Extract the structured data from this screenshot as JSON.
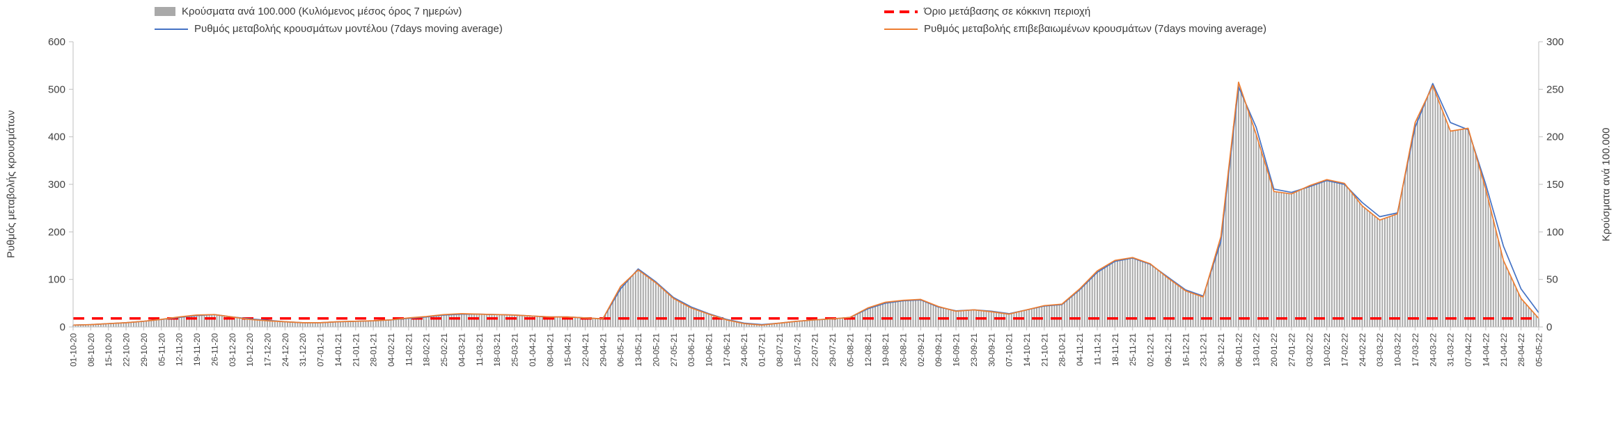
{
  "legend": {
    "bars_label": "Κρούσματα ανά 100.000 (Κυλιόμενος μέσος όρος 7 ημερών)",
    "threshold_label": "Όριο μετάβασης σε κόκκινη περιοχή",
    "model_label": "Ρυθμός μεταβολής κρουσμάτων μοντέλου (7days moving average)",
    "confirmed_label": "Ρυθμός μεταβολής επιβεβαιωμένων κρουσμάτων (7days moving average)"
  },
  "axes": {
    "left_title": "Ρυθμός μεταβολής κρουσμάτων",
    "right_title": "Κρούσματα ανά 100.000",
    "left_ticks": [
      0,
      100,
      200,
      300,
      400,
      500,
      600
    ],
    "right_ticks": [
      0,
      50,
      100,
      150,
      200,
      250,
      300
    ],
    "left_range": [
      0,
      600
    ],
    "right_range": [
      0,
      300
    ]
  },
  "colors": {
    "bars": "#a9a9a9",
    "model": "#4472c4",
    "confirmed": "#ed7d31",
    "threshold": "#ff0000",
    "axis_line": "#bfbfbf",
    "tick_text": "#404040"
  },
  "chart_data": {
    "type": "line+bar",
    "title": "",
    "grid": false,
    "legend_position": "top",
    "x_tick_rotation": 90,
    "x": [
      "01-10-20",
      "08-10-20",
      "15-10-20",
      "22-10-20",
      "29-10-20",
      "05-11-20",
      "12-11-20",
      "19-11-20",
      "26-11-20",
      "03-12-20",
      "10-12-20",
      "17-12-20",
      "24-12-20",
      "31-12-20",
      "07-01-21",
      "14-01-21",
      "21-01-21",
      "28-01-21",
      "04-02-21",
      "11-02-21",
      "18-02-21",
      "25-02-21",
      "04-03-21",
      "11-03-21",
      "18-03-21",
      "25-03-21",
      "01-04-21",
      "08-04-21",
      "15-04-21",
      "22-04-21",
      "29-04-21",
      "06-05-21",
      "13-05-21",
      "20-05-21",
      "27-05-21",
      "03-06-21",
      "10-06-21",
      "17-06-21",
      "24-06-21",
      "01-07-21",
      "08-07-21",
      "15-07-21",
      "22-07-21",
      "29-07-21",
      "05-08-21",
      "12-08-21",
      "19-08-21",
      "26-08-21",
      "02-09-21",
      "09-09-21",
      "16-09-21",
      "23-09-21",
      "30-09-21",
      "07-10-21",
      "14-10-21",
      "21-10-21",
      "28-10-21",
      "04-11-21",
      "11-11-21",
      "18-11-21",
      "25-11-21",
      "02-12-21",
      "09-12-21",
      "16-12-21",
      "23-12-21",
      "30-12-21",
      "06-01-22",
      "13-01-22",
      "20-01-22",
      "27-01-22",
      "03-02-22",
      "10-02-22",
      "17-02-22",
      "24-02-22",
      "03-03-22",
      "10-03-22",
      "17-03-22",
      "24-03-22",
      "31-03-22",
      "07-04-22",
      "14-04-22",
      "21-04-22",
      "28-04-22",
      "05-05-22"
    ],
    "series": [
      {
        "name": "Κρούσματα ανά 100.000 (Κυλιόμενος μέσος όρος 7 ημερών)",
        "type": "bar",
        "axis": "right",
        "values": [
          2,
          2.5,
          3.5,
          4.5,
          6,
          8,
          10.5,
          12.5,
          13,
          10.5,
          8,
          6.5,
          5.5,
          4.5,
          4.5,
          5.5,
          6,
          6.5,
          7.5,
          9.5,
          11,
          13,
          14,
          13.5,
          13,
          12.5,
          11.5,
          10.5,
          10.5,
          9.5,
          8.5,
          42.5,
          60,
          46.5,
          30,
          20,
          13.5,
          7.5,
          3.5,
          2,
          4,
          6,
          7.5,
          8.5,
          10,
          20,
          26,
          28,
          29,
          21.5,
          16.5,
          18,
          16,
          13.5,
          18,
          22.5,
          24,
          40,
          59,
          70,
          73,
          66.5,
          51.5,
          38,
          31.5,
          95,
          257.5,
          202.5,
          142.5,
          140,
          148.5,
          155,
          151,
          127.5,
          112.5,
          119,
          215,
          254,
          206,
          209,
          145,
          70,
          30,
          9
        ]
      },
      {
        "name": "Ρυθμός μεταβολής κρουσμάτων μοντέλου (7days moving average)",
        "type": "line",
        "axis": "left",
        "values": [
          4,
          5,
          7,
          9,
          12,
          16,
          20,
          24,
          26,
          21,
          17,
          14,
          11,
          9,
          9,
          11,
          12,
          13,
          15,
          18,
          21,
          25,
          27,
          27,
          26,
          25,
          23,
          21,
          21,
          19,
          17,
          80,
          122,
          95,
          62,
          42,
          28,
          16,
          8,
          5,
          8,
          12,
          15,
          17,
          20,
          38,
          50,
          55,
          57,
          42,
          34,
          36,
          33,
          28,
          36,
          44,
          47,
          78,
          115,
          138,
          145,
          132,
          105,
          78,
          65,
          180,
          505,
          420,
          290,
          283,
          295,
          308,
          300,
          262,
          232,
          240,
          420,
          512,
          430,
          415,
          300,
          170,
          80,
          30
        ]
      },
      {
        "name": "Ρυθμός μεταβολής επιβεβαιωμένων κρουσμάτων (7days moving average)",
        "type": "line",
        "axis": "left",
        "values": [
          4,
          5,
          7,
          9,
          12,
          16,
          21,
          25,
          26,
          21,
          16,
          13,
          11,
          9,
          9,
          11,
          12,
          13,
          15,
          19,
          22,
          26,
          28,
          27,
          26,
          25,
          23,
          21,
          21,
          19,
          17,
          85,
          120,
          93,
          60,
          40,
          27,
          15,
          7,
          4,
          8,
          12,
          15,
          17,
          20,
          40,
          52,
          56,
          58,
          43,
          33,
          36,
          32,
          27,
          36,
          45,
          48,
          80,
          118,
          140,
          146,
          133,
          103,
          76,
          63,
          190,
          515,
          405,
          285,
          280,
          297,
          310,
          302,
          255,
          225,
          238,
          430,
          508,
          412,
          418,
          290,
          140,
          60,
          18
        ]
      }
    ],
    "threshold": {
      "name": "Όριο μετάβασης σε κόκκινη περιοχή",
      "axis": "left",
      "value": 18
    }
  }
}
